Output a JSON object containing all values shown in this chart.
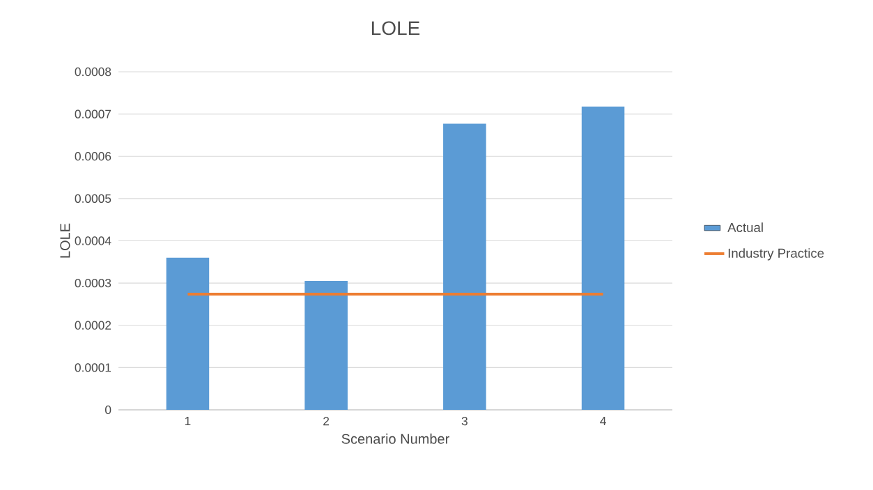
{
  "chart_data": {
    "type": "bar",
    "title": "LOLE",
    "xlabel": "Scenario Number",
    "ylabel": "LOLE",
    "categories": [
      "1",
      "2",
      "3",
      "4"
    ],
    "series": [
      {
        "name": "Actual",
        "color": "#5b9bd5",
        "values": [
          0.00036,
          0.000305,
          0.000677,
          0.000718
        ]
      },
      {
        "name": "Industry Practice",
        "type": "line",
        "color": "#ed7d31",
        "values": [
          0.000274,
          0.000274,
          0.000274,
          0.000274
        ]
      }
    ],
    "ylim": [
      0,
      0.0008
    ],
    "yticks": [
      0,
      0.0001,
      0.0002,
      0.0003,
      0.0004,
      0.0005,
      0.0006,
      0.0007,
      0.0008
    ],
    "grid": "y",
    "legend": "right"
  }
}
